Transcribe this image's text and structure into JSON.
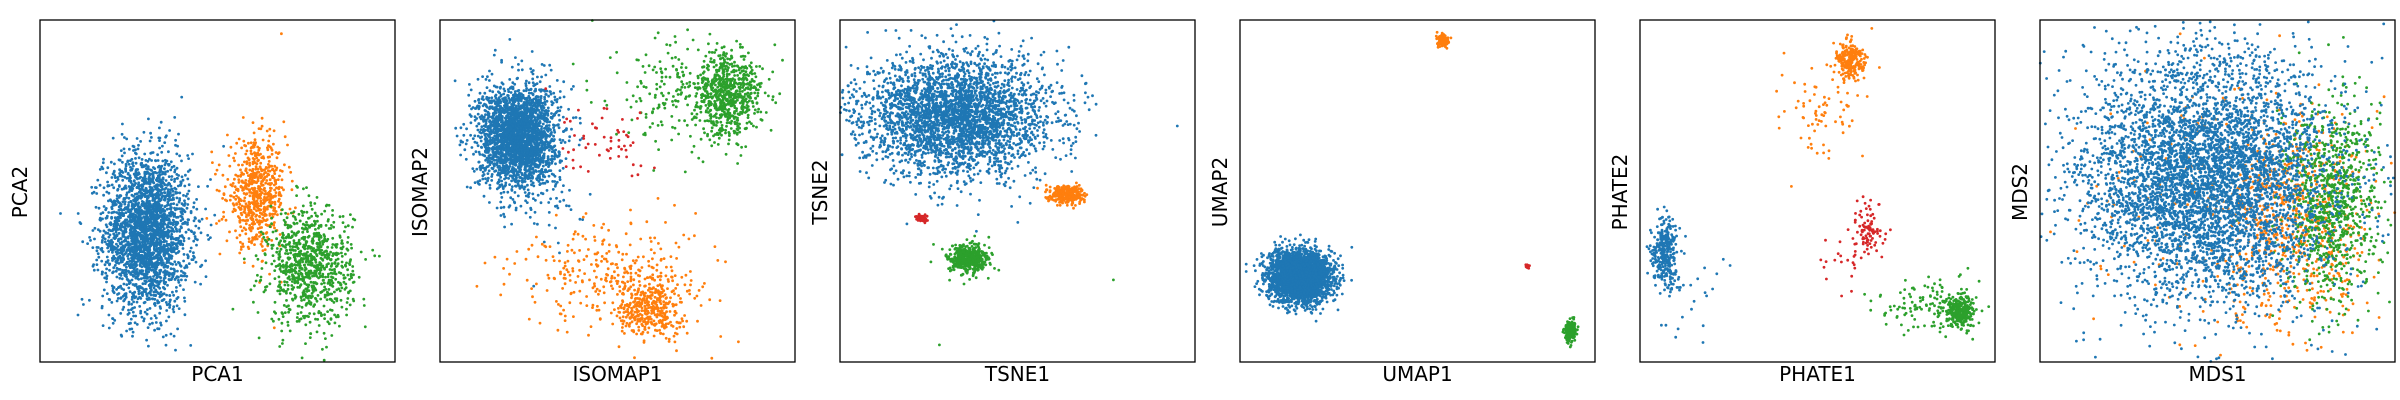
{
  "colors": {
    "blue": "#1f77b4",
    "orange": "#ff7f0e",
    "green": "#2ca02c",
    "red": "#d62728"
  },
  "chart_data": [
    {
      "type": "scatter",
      "xlabel": "PCA1",
      "ylabel": "PCA2",
      "grid": false,
      "ticks": false,
      "xlim": [
        0,
        100
      ],
      "ylim": [
        0,
        100
      ],
      "series": [
        {
          "color": "blue",
          "clusters": [
            {
              "cx": 30,
              "cy": 38,
              "sx": 6.0,
              "sy": 11.5,
              "n": 2600
            }
          ]
        },
        {
          "color": "orange",
          "clusters": [
            {
              "cx": 61,
              "cy": 49,
              "sx": 4.2,
              "sy": 7.5,
              "n": 650
            }
          ],
          "outliers": [
            [
              68,
              96
            ],
            [
              66,
              10
            ]
          ]
        },
        {
          "color": "green",
          "clusters": [
            {
              "cx": 76,
              "cy": 28,
              "sx": 6.0,
              "sy": 8.5,
              "n": 900
            }
          ]
        }
      ]
    },
    {
      "type": "scatter",
      "xlabel": "ISOMAP1",
      "ylabel": "ISOMAP2",
      "grid": false,
      "ticks": false,
      "xlim": [
        0,
        100
      ],
      "ylim": [
        0,
        100
      ],
      "series": [
        {
          "color": "blue",
          "clusters": [
            {
              "cx": 22,
              "cy": 66,
              "sx": 5.5,
              "sy": 7.5,
              "n": 2600
            },
            {
              "cx": 30,
              "cy": 42,
              "sx": 5.0,
              "sy": 8.0,
              "n": 25
            }
          ]
        },
        {
          "color": "orange",
          "clusters": [
            {
              "cx": 59,
              "cy": 16,
              "sx": 4.5,
              "sy": 4.5,
              "n": 380
            },
            {
              "cx": 50,
              "cy": 26,
              "sx": 14.0,
              "sy": 8.0,
              "n": 300
            }
          ]
        },
        {
          "color": "green",
          "clusters": [
            {
              "cx": 81,
              "cy": 78,
              "sx": 4.8,
              "sy": 6.0,
              "n": 700
            },
            {
              "cx": 66,
              "cy": 78,
              "sx": 9.0,
              "sy": 9.0,
              "n": 180
            }
          ]
        },
        {
          "color": "red",
          "clusters": [
            {
              "cx": 47,
              "cy": 64,
              "sx": 8.0,
              "sy": 5.0,
              "n": 55
            }
          ]
        }
      ]
    },
    {
      "type": "scatter",
      "xlabel": "TSNE1",
      "ylabel": "TSNE2",
      "grid": false,
      "ticks": false,
      "xlim": [
        0,
        100
      ],
      "ylim": [
        0,
        100
      ],
      "series": [
        {
          "color": "blue",
          "clusters": [
            {
              "cx": 33,
              "cy": 72,
              "sx": 13.0,
              "sy": 8.5,
              "n": 3200
            }
          ],
          "outliers": [
            [
              95,
              69
            ]
          ]
        },
        {
          "color": "orange",
          "clusters": [
            {
              "cx": 64,
              "cy": 49,
              "sx": 2.3,
              "sy": 1.3,
              "n": 320
            }
          ]
        },
        {
          "color": "green",
          "clusters": [
            {
              "cx": 36,
              "cy": 30,
              "sx": 2.8,
              "sy": 2.1,
              "n": 520
            }
          ],
          "outliers": [
            [
              77,
              24
            ],
            [
              28,
              5
            ]
          ]
        },
        {
          "color": "red",
          "clusters": [
            {
              "cx": 23,
              "cy": 42,
              "sx": 0.8,
              "sy": 0.6,
              "n": 50
            }
          ]
        }
      ]
    },
    {
      "type": "scatter",
      "xlabel": "UMAP1",
      "ylabel": "UMAP2",
      "grid": false,
      "ticks": false,
      "xlim": [
        0,
        100
      ],
      "ylim": [
        0,
        100
      ],
      "series": [
        {
          "color": "blue",
          "clusters": [
            {
              "cx": 17,
              "cy": 25,
              "sx": 4.3,
              "sy": 3.6,
              "n": 3200
            }
          ]
        },
        {
          "color": "orange",
          "clusters": [
            {
              "cx": 57,
              "cy": 94,
              "sx": 0.7,
              "sy": 0.9,
              "n": 140
            }
          ]
        },
        {
          "color": "green",
          "clusters": [
            {
              "cx": 93,
              "cy": 9,
              "sx": 0.8,
              "sy": 1.6,
              "n": 200
            }
          ]
        },
        {
          "color": "red",
          "clusters": [
            {
              "cx": 81,
              "cy": 28,
              "sx": 0.3,
              "sy": 0.3,
              "n": 20
            }
          ]
        }
      ]
    },
    {
      "type": "scatter",
      "xlabel": "PHATE1",
      "ylabel": "PHATE2",
      "grid": false,
      "ticks": false,
      "xlim": [
        0,
        100
      ],
      "ylim": [
        0,
        100
      ],
      "series": [
        {
          "color": "blue",
          "clusters": [
            {
              "cx": 7,
              "cy": 32,
              "sx": 1.8,
              "sy": 5.0,
              "n": 320
            },
            {
              "cx": 12,
              "cy": 20,
              "sx": 7.0,
              "sy": 8.0,
              "n": 30
            }
          ]
        },
        {
          "color": "orange",
          "clusters": [
            {
              "cx": 59,
              "cy": 88,
              "sx": 2.0,
              "sy": 3.0,
              "n": 240
            },
            {
              "cx": 50,
              "cy": 72,
              "sx": 6.0,
              "sy": 7.0,
              "n": 70
            }
          ]
        },
        {
          "color": "green",
          "clusters": [
            {
              "cx": 90,
              "cy": 15,
              "sx": 2.0,
              "sy": 2.3,
              "n": 330
            },
            {
              "cx": 80,
              "cy": 16,
              "sx": 7.0,
              "sy": 4.0,
              "n": 120
            }
          ]
        },
        {
          "color": "red",
          "clusters": [
            {
              "cx": 64,
              "cy": 38,
              "sx": 2.3,
              "sy": 4.5,
              "n": 90
            },
            {
              "cx": 55,
              "cy": 32,
              "sx": 6.0,
              "sy": 6.0,
              "n": 20
            }
          ]
        }
      ]
    },
    {
      "type": "scatter",
      "xlabel": "MDS1",
      "ylabel": "MDS2",
      "grid": false,
      "ticks": false,
      "xlim": [
        0,
        100
      ],
      "ylim": [
        0,
        100
      ],
      "series": [
        {
          "color": "orange",
          "clusters": [
            {
              "cx": 72,
              "cy": 40,
              "sx": 10.0,
              "sy": 15.0,
              "n": 650
            },
            {
              "cx": 50,
              "cy": 45,
              "sx": 18.0,
              "sy": 20.0,
              "n": 200
            }
          ]
        },
        {
          "color": "green",
          "clusters": [
            {
              "cx": 82,
              "cy": 46,
              "sx": 6.5,
              "sy": 15.0,
              "n": 900
            }
          ]
        },
        {
          "color": "blue",
          "clusters": [
            {
              "cx": 47,
              "cy": 54,
              "sx": 17.5,
              "sy": 18.0,
              "n": 5000
            }
          ]
        }
      ]
    }
  ]
}
